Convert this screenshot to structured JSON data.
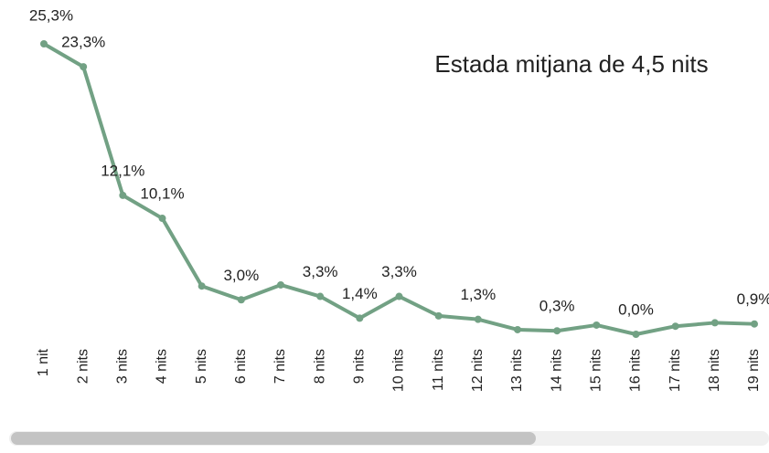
{
  "chart_data": {
    "type": "line",
    "annotation": "Estada mitjana de 4,5 nits",
    "categories": [
      "1 nit",
      "2 nits",
      "3 nits",
      "4 nits",
      "5 nits",
      "6 nits",
      "7 nits",
      "8 nits",
      "9 nits",
      "10 nits",
      "11 nits",
      "12 nits",
      "13 nits",
      "14 nits",
      "15 nits",
      "16 nits",
      "17 nits",
      "18 nits",
      "19 nits"
    ],
    "values": [
      25.3,
      23.3,
      12.1,
      10.1,
      4.2,
      3.0,
      4.3,
      3.3,
      1.4,
      3.3,
      1.6,
      1.3,
      0.4,
      0.3,
      0.8,
      0.0,
      0.7,
      1.0,
      0.9
    ],
    "value_labels": [
      "25,3%",
      "23,3%",
      "12,1%",
      "10,1%",
      null,
      "3,0%",
      null,
      "3,3%",
      "1,4%",
      "3,3%",
      null,
      "1,3%",
      null,
      "0,3%",
      null,
      "0,0%",
      null,
      null,
      "0,9%"
    ],
    "color": "#72a184"
  }
}
